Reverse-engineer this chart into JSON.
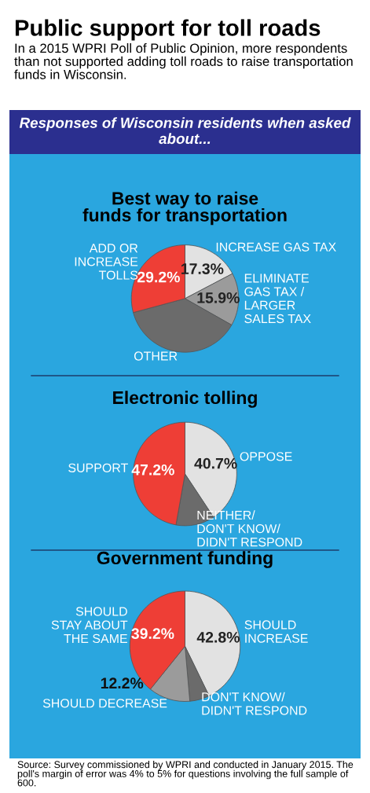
{
  "chart_data": [
    {
      "type": "other",
      "title": "Public support for toll roads",
      "subtitle": "In a 2015 WPRI Poll of Public Opinion, more respondents than not supported adding toll roads to raise transportation funds in Wisconsin.",
      "annotations": [
        "Responses of Wisconsin residents when asked about..."
      ]
    },
    {
      "type": "pie",
      "title": "Best way to raise\nfunds for transportation",
      "categories": [
        "INCREASE GAS TAX",
        "ELIMINATE\nGAS TAX /\nLARGER\nSALES TAX",
        "OTHER",
        "ADD OR\nINCREASE\nTOLLS"
      ],
      "values": [
        17.3,
        15.9,
        37.6,
        29.2
      ],
      "colors": [
        "#e2e2e2",
        "#9b9b9b",
        "#6b6b6b",
        "#ee3e36"
      ],
      "value_labels": [
        "17.3%",
        "15.9%",
        null,
        "29.2%"
      ]
    },
    {
      "type": "pie",
      "title": "Electronic tolling",
      "categories": [
        "OPPOSE",
        "NEITHER/\nDON'T KNOW/\nDIDN'T RESPOND",
        "SUPPORT"
      ],
      "values": [
        40.7,
        12.1,
        47.2
      ],
      "colors": [
        "#e2e2e2",
        "#6b6b6b",
        "#ee3e36"
      ],
      "value_labels": [
        "40.7%",
        null,
        "47.2%"
      ]
    },
    {
      "type": "pie",
      "title": "Government funding",
      "categories": [
        "SHOULD\nINCREASE",
        "DON'T KNOW/\nDIDN'T RESPOND",
        "SHOULD DECREASE",
        "SHOULD\nSTAY ABOUT\nTHE SAME"
      ],
      "values": [
        42.8,
        5.8,
        12.2,
        39.2
      ],
      "colors": [
        "#e2e2e2",
        "#6b6b6b",
        "#9b9b9b",
        "#ee3e36"
      ],
      "value_labels": [
        "42.8%",
        null,
        "12.2%",
        "39.2%"
      ],
      "annotations": [
        "Source: Survey commissioned by WPRI and conducted in January 2015. The poll's margin of error was 4% to 5% for questions involving the full sample of 600."
      ]
    }
  ]
}
